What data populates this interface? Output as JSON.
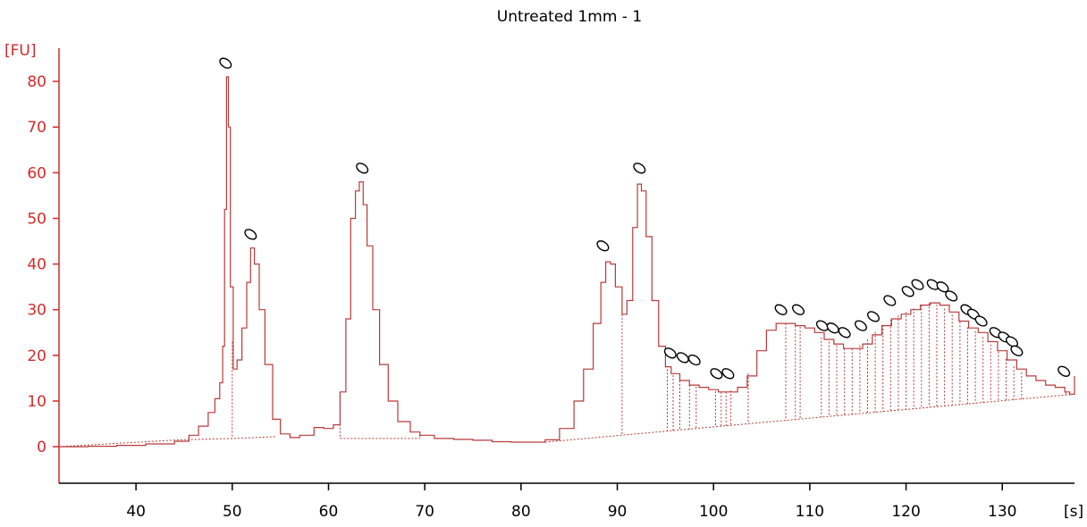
{
  "chart_data": {
    "type": "line",
    "title": "Untreated 1mm - 1",
    "ylabel": "[FU]",
    "xlabel": "[s]",
    "xlim": [
      32,
      137.5
    ],
    "ylim": [
      -8,
      90
    ],
    "xticks": [
      40,
      50,
      60,
      70,
      80,
      90,
      100,
      110,
      120,
      130
    ],
    "yticks": [
      0,
      10,
      20,
      30,
      40,
      50,
      60,
      70,
      80
    ],
    "grid": false,
    "colors": {
      "trace": "#b83a3a",
      "baseline": "#b83a3a",
      "axis_y": "#d42a2a",
      "axis_x": "#000000"
    },
    "series": [
      {
        "x": [
          32,
          35,
          38,
          41,
          44,
          45.5,
          46.5,
          47.5,
          48.2,
          48.7,
          49.0,
          49.2,
          49.4,
          49.6,
          49.8,
          50.1,
          50.5,
          51.0,
          51.5,
          51.9,
          52.3,
          52.8,
          53.4,
          54.2,
          55.0,
          56.0,
          57.0,
          58.5,
          59.5,
          60.5,
          61.2,
          61.8,
          62.3,
          62.8,
          63.2,
          63.6,
          64.0,
          64.6,
          65.3,
          66.2,
          67.2,
          68.5,
          69.5,
          71,
          73,
          75,
          77,
          79,
          81,
          82.5,
          84,
          85.5,
          86.5,
          87.5,
          88.3,
          88.8,
          89.3,
          89.8,
          90.5,
          91.0,
          91.6,
          92.1,
          92.5,
          93.0,
          93.6,
          94.3,
          95.0,
          95.6,
          96.5,
          97.5,
          98.5,
          99.5,
          100.5,
          101.5,
          102.5,
          103.5,
          104.5,
          105.5,
          106.5,
          107.5,
          108.5,
          109.5,
          110.5,
          111.5,
          112.5,
          113.5,
          114.5,
          115.5,
          116.5,
          117.5,
          118.5,
          119.5,
          120.5,
          121.5,
          122.5,
          123.5,
          124.5,
          125.5,
          126.5,
          127.5,
          128.5,
          129.5,
          130.5,
          131.5,
          132.5,
          133.5,
          134.5,
          135.5,
          136.5,
          137.0,
          137.5
        ],
        "y": [
          0,
          0.1,
          0.3,
          0.6,
          1.2,
          2.5,
          4.5,
          7.5,
          10.5,
          14,
          22,
          52,
          81,
          70,
          35,
          17,
          19,
          26,
          36,
          43.5,
          40,
          30,
          18,
          6,
          2.8,
          2,
          2.5,
          4.2,
          4.0,
          4.8,
          12,
          28,
          50,
          56,
          58,
          53,
          44,
          30,
          18,
          10,
          5.5,
          3.2,
          2.5,
          1.8,
          1.6,
          1.4,
          1.1,
          1.0,
          1.0,
          1.5,
          4,
          10,
          17,
          27,
          36,
          40.5,
          40,
          35,
          29,
          32,
          48,
          57.5,
          56,
          46,
          32,
          22,
          17.5,
          16,
          14.5,
          13.5,
          13,
          12.5,
          12,
          12,
          13,
          15.5,
          21,
          25.5,
          27,
          27,
          26.5,
          26,
          25,
          23.5,
          22.5,
          21.5,
          21.5,
          22.5,
          24.5,
          26.5,
          28,
          29,
          30,
          31,
          31.5,
          31,
          29.5,
          27.5,
          26,
          25,
          23,
          21,
          19,
          17,
          15.5,
          14.5,
          13.5,
          13,
          12,
          11.5,
          15.5
        ]
      }
    ],
    "baselines": [
      {
        "x": [
          32,
          44.5,
          50.0,
          54.5
        ],
        "y": [
          0,
          1.5,
          1.8,
          2.2
        ]
      },
      {
        "x": [
          61.2,
          69.5
        ],
        "y": [
          1.8,
          1.8
        ]
      },
      {
        "x": [
          82.5,
          137.5
        ],
        "y": [
          1.0,
          11.5
        ]
      }
    ],
    "drops": [
      50.0,
      61.2,
      69.5,
      90.5,
      95.2,
      95.8,
      96.5,
      97.5,
      98.2,
      100.2,
      100.8,
      101.3,
      101.8,
      103.6,
      107.5,
      108.5,
      109.0,
      111.2,
      112.0,
      112.8,
      113.6,
      114.4,
      115.2,
      116.0,
      116.8,
      117.6,
      118.4,
      119.2,
      120.0,
      120.8,
      121.6,
      122.4,
      123.2,
      124.0,
      124.8,
      125.6,
      126.4,
      127.2,
      128.0,
      128.8,
      129.6,
      130.4,
      131.2,
      132.0,
      136.6,
      137.0
    ],
    "markers": [
      {
        "x": 49.3,
        "y": 84
      },
      {
        "x": 51.9,
        "y": 46.5
      },
      {
        "x": 63.5,
        "y": 61
      },
      {
        "x": 88.5,
        "y": 44
      },
      {
        "x": 92.3,
        "y": 61
      },
      {
        "x": 95.5,
        "y": 20.5
      },
      {
        "x": 96.8,
        "y": 19.5
      },
      {
        "x": 98.0,
        "y": 19
      },
      {
        "x": 100.3,
        "y": 16
      },
      {
        "x": 101.5,
        "y": 16
      },
      {
        "x": 107.0,
        "y": 30
      },
      {
        "x": 108.8,
        "y": 30
      },
      {
        "x": 111.3,
        "y": 26.5
      },
      {
        "x": 112.4,
        "y": 26
      },
      {
        "x": 113.6,
        "y": 25
      },
      {
        "x": 115.3,
        "y": 26.5
      },
      {
        "x": 116.6,
        "y": 28.5
      },
      {
        "x": 118.3,
        "y": 32
      },
      {
        "x": 120.2,
        "y": 34
      },
      {
        "x": 121.2,
        "y": 35.5
      },
      {
        "x": 122.8,
        "y": 35.5
      },
      {
        "x": 123.8,
        "y": 35
      },
      {
        "x": 124.7,
        "y": 33
      },
      {
        "x": 126.3,
        "y": 30
      },
      {
        "x": 127.0,
        "y": 29
      },
      {
        "x": 127.8,
        "y": 27.5
      },
      {
        "x": 129.3,
        "y": 25
      },
      {
        "x": 130.2,
        "y": 24
      },
      {
        "x": 131.0,
        "y": 23
      },
      {
        "x": 131.5,
        "y": 21
      },
      {
        "x": 136.4,
        "y": 16.5
      }
    ]
  }
}
